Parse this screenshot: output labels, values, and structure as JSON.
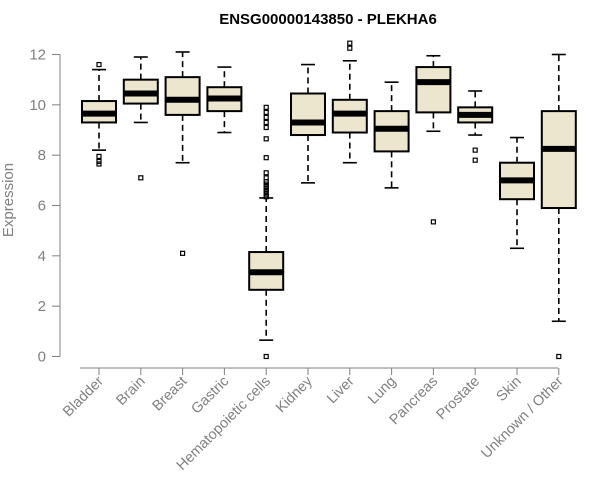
{
  "chart_data": {
    "type": "boxplot",
    "title": "ENSG00000143850 - PLEKHA6",
    "xlabel": "",
    "ylabel": "Expression",
    "ylim": [
      0,
      12
    ],
    "yticks": [
      0,
      2,
      4,
      6,
      8,
      10,
      12
    ],
    "box_fill": "#ede6cf",
    "axis_color": "#808080",
    "categories": [
      "Bladder",
      "Brain",
      "Breast",
      "Gastric",
      "Hematopoietic cells",
      "Kidney",
      "Liver",
      "Lung",
      "Pancreas",
      "Prostate",
      "Skin",
      "Unknown / Other"
    ],
    "series": [
      {
        "name": "Bladder",
        "whisker_low": 8.2,
        "q1": 9.3,
        "median": 9.65,
        "q3": 10.15,
        "whisker_high": 11.4,
        "outliers": [
          11.6,
          7.95,
          7.75,
          7.65
        ]
      },
      {
        "name": "Brain",
        "whisker_low": 9.3,
        "q1": 10.05,
        "median": 10.45,
        "q3": 11.0,
        "whisker_high": 11.9,
        "outliers": [
          7.1
        ]
      },
      {
        "name": "Breast",
        "whisker_low": 7.7,
        "q1": 9.6,
        "median": 10.2,
        "q3": 11.1,
        "whisker_high": 12.1,
        "outliers": [
          4.1
        ]
      },
      {
        "name": "Gastric",
        "whisker_low": 8.9,
        "q1": 9.75,
        "median": 10.25,
        "q3": 10.7,
        "whisker_high": 11.5,
        "outliers": []
      },
      {
        "name": "Hematopoietic cells",
        "whisker_low": 0.65,
        "q1": 2.65,
        "median": 3.35,
        "q3": 4.15,
        "whisker_high": 6.3,
        "outliers": [
          9.9,
          9.7,
          9.5,
          9.3,
          9.1,
          8.65,
          7.9,
          7.3,
          7.1,
          6.95,
          6.85,
          6.75,
          6.65,
          6.55,
          6.45,
          6.35,
          0.0
        ]
      },
      {
        "name": "Kidney",
        "whisker_low": 6.9,
        "q1": 8.8,
        "median": 9.3,
        "q3": 10.45,
        "whisker_high": 11.6,
        "outliers": []
      },
      {
        "name": "Liver",
        "whisker_low": 7.7,
        "q1": 8.9,
        "median": 9.65,
        "q3": 10.2,
        "whisker_high": 11.75,
        "outliers": [
          12.45,
          12.25
        ]
      },
      {
        "name": "Lung",
        "whisker_low": 6.7,
        "q1": 8.15,
        "median": 9.05,
        "q3": 9.75,
        "whisker_high": 10.9,
        "outliers": []
      },
      {
        "name": "Pancreas",
        "whisker_low": 8.95,
        "q1": 9.7,
        "median": 10.9,
        "q3": 11.5,
        "whisker_high": 11.95,
        "outliers": [
          5.35
        ]
      },
      {
        "name": "Prostate",
        "whisker_low": 8.8,
        "q1": 9.3,
        "median": 9.6,
        "q3": 9.9,
        "whisker_high": 10.55,
        "outliers": [
          8.2,
          7.8
        ]
      },
      {
        "name": "Skin",
        "whisker_low": 4.3,
        "q1": 6.25,
        "median": 7.0,
        "q3": 7.7,
        "whisker_high": 8.7,
        "outliers": []
      },
      {
        "name": "Unknown / Other",
        "whisker_low": 1.4,
        "q1": 5.9,
        "median": 8.25,
        "q3": 9.75,
        "whisker_high": 12.0,
        "outliers": [
          0.0
        ]
      }
    ]
  }
}
